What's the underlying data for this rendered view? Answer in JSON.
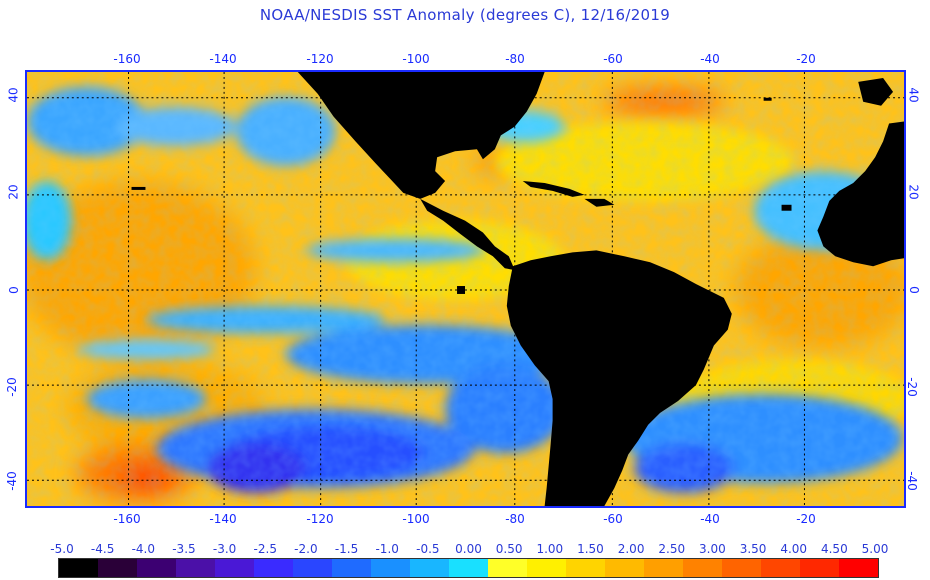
{
  "title": "NOAA/NESDIS SST Anomaly (degrees C), 12/16/2019",
  "axes": {
    "lon_ticks": [
      "-160",
      "-140",
      "-120",
      "-100",
      "-80",
      "-60",
      "-40",
      "-20"
    ],
    "lat_ticks": [
      "40",
      "20",
      "0",
      "-20",
      "-40"
    ]
  },
  "legend": {
    "labels": [
      "-5.0",
      "-4.5",
      "-4.0",
      "-3.5",
      "-3.0",
      "-2.5",
      "-2.0",
      "-1.5",
      "-1.0",
      "-0.5",
      "0.00",
      "0.50",
      "1.00",
      "1.50",
      "2.00",
      "2.50",
      "3.00",
      "3.50",
      "4.00",
      "4.50",
      "5.00"
    ],
    "colors": [
      "#000000",
      "#2a0038",
      "#3c0072",
      "#4b10a8",
      "#4a18d6",
      "#3a2bff",
      "#2a46ff",
      "#1f6bff",
      "#1a90ff",
      "#19b6ff",
      "#19e0ff",
      "#ffff28",
      "#fff000",
      "#ffd400",
      "#ffba00",
      "#ff9f00",
      "#ff8200",
      "#ff6400",
      "#ff4600",
      "#ff2800",
      "#ff0000"
    ]
  },
  "colors": {
    "land": "#000000",
    "frame": "#1a2bff",
    "grid": "#000000",
    "warm": "#ffc21a",
    "cool": "#3a9bff"
  }
}
